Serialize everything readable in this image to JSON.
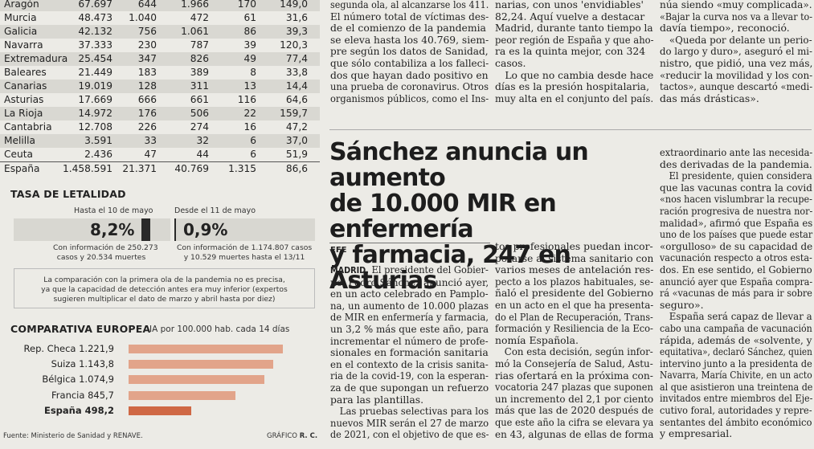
{
  "table": {
    "rows": [
      [
        "Aragón",
        "67.697",
        "644",
        "1.966",
        "170",
        "149,0"
      ],
      [
        "Murcia",
        "48.473",
        "1.040",
        "472",
        "61",
        "31,6"
      ],
      [
        "Galicia",
        "42.132",
        "756",
        "1.061",
        "86",
        "39,3"
      ],
      [
        "Navarra",
        "37.333",
        "230",
        "787",
        "39",
        "120,3"
      ],
      [
        "Extremadura",
        "25.454",
        "347",
        "826",
        "49",
        "77,4"
      ],
      [
        "Baleares",
        "21.449",
        "183",
        "389",
        "8",
        "33,8"
      ],
      [
        "Canarias",
        "19.019",
        "128",
        "311",
        "13",
        "14,4"
      ],
      [
        "Asturias",
        "17.669",
        "666",
        "661",
        "116",
        "64,6"
      ],
      [
        "La Rioja",
        "14.972",
        "176",
        "506",
        "22",
        "159,7"
      ],
      [
        "Cantabria",
        "12.708",
        "226",
        "274",
        "16",
        "47,2"
      ],
      [
        "Melilla",
        "3.591",
        "33",
        "32",
        "6",
        "37,0"
      ],
      [
        "Ceuta",
        "2.436",
        "47",
        "44",
        "6",
        "51,9"
      ]
    ],
    "total": [
      "España",
      "1.458.591",
      "21.371",
      "40.769",
      "1.315",
      "86,6"
    ]
  },
  "lethality": {
    "title": "TASA DE LETALIDAD",
    "left_label": "Hasta el 10 de mayo",
    "right_label": "Desde el 11 de mayo",
    "left_value": "8,2%",
    "right_value": "0,9%",
    "left_level": 8.2,
    "right_level": 0.9,
    "left_note_1": "Con información de 250.273",
    "left_note_2": "casos y 20.534 muertes",
    "right_note_1": "Con información de 1.174.807 casos",
    "right_note_2": "y 10.529 muertes hasta el 13/11",
    "comparison_1": "La comparación con la primera ola de la pandemia no es precisa,",
    "comparison_2": "ya que la capacidad de detección antes era muy inferior (expertos",
    "comparison_3": "sugieren multiplicar el dato de marzo y abril hasta por diez)"
  },
  "european": {
    "title": "COMPARATIVA EUROPEA",
    "subtitle": "IA por 100.000 hab. cada 14 días"
  },
  "chart_data": {
    "type": "bar",
    "title": "COMPARATIVA EUROPEA",
    "subtitle": "IA por 100.000 hab. cada 14 días",
    "categories": [
      "Rep. Checa",
      "Suiza",
      "Bélgica",
      "Francia",
      "España"
    ],
    "values": [
      1221.9,
      1143.8,
      1074.9,
      845.7,
      498.2
    ],
    "value_labels": [
      "1.221,9",
      "1.143,8",
      "1.074,9",
      "845,7",
      "498,2"
    ],
    "highlight": "España",
    "colors": {
      "bar": "#e2a48a",
      "highlight": "#cf6845"
    }
  },
  "footer": {
    "source": "Fuente: Ministerio de Sanidad y RENAVE.",
    "credit_prefix": "GRÁFICO",
    "credit_name": "R. C."
  },
  "top_col1": [
    "segunda ola, al alcanzarse los 411.",
    "El número total de víctimas des-",
    "de el comienzo de la pandemia",
    "se eleva hasta los 40.769, siem-",
    "pre según los datos de Sanidad,",
    "que sólo contabiliza a los falleci-",
    "dos que hayan dado positivo en",
    "una prueba de coronavirus. Otros",
    "organismos públicos, como el Ins-"
  ],
  "top_col2": [
    "narias, con unos 'envidiables'",
    "82,24. Aquí vuelve a destacar",
    "Madrid, durante tanto tiempo la",
    "peor región de España y que aho-",
    "ra es la quinta mejor, con 324",
    "casos.",
    "   Lo que no cambia desde hace",
    "días es la presión hospitalaria,",
    "muy alta en el conjunto del país."
  ],
  "top_col3": [
    "núa siendo «muy complicada».",
    "«Bajar la curva nos va a llevar to-",
    "davía tiempo», reconoció.",
    "   «Queda por delante un perio-",
    "do largo y duro», aseguró el mi-",
    "nistro, que pidió, una vez más,",
    "«reducir la movilidad y los con-",
    "tactos», aunque descartó «medi-",
    "das más drásticas»."
  ],
  "article": {
    "headline_1": "Sánchez anuncia un aumento",
    "headline_2": "de 10.000 MIR en enfermería",
    "headline_3": "y farmacia, 247 en Asturias",
    "agency": "EFE",
    "col1": [
      "MADRID. El presidente del Gobier-",
      "no, Pedro Sánchez anunció ayer,",
      "en un acto celebrado en Pamplo-",
      "na, un aumento de 10.000 plazas",
      "de MIR en enfermería y farmacia,",
      "un 3,2 % más que este año, para",
      "incrementar el número de profe-",
      "sionales en formación sanitaria",
      "en el contexto de la crisis sanita-",
      "ria de la covid-19, con la esperan-",
      "za de que supongan un refuerzo",
      "para las plantillas.",
      "   Las pruebas selectivas para los",
      "nuevos MIR serán el 27 de marzo",
      "de 2021, con el objetivo de que es-"
    ],
    "col2": [
      "tos profesionales puedan incor-",
      "porarse al sistema sanitario con",
      "varios meses de antelación res-",
      "pecto a los plazos habituales, se-",
      "ñaló el presidente del Gobierno",
      "en un acto en el que ha presenta-",
      "do el Plan de Recuperación, Trans-",
      "formación y Resiliencia de la Eco-",
      "nomía Española.",
      "   Con esta decisión, según infor-",
      "mó la Consejería de Salud, Astu-",
      "rias ofertará en la próxima con-",
      "vocatoria 247 plazas que suponen",
      "un incremento del 2,1 por ciento",
      "más que las de 2020 después de",
      "que este año la cifra se elevara ya",
      "en 43, algunas de ellas de forma"
    ],
    "col3": [
      "extraordinario ante las necesida-",
      "des derivadas de la pandemia.",
      "   El presidente, quien considera",
      "que las vacunas contra la covid",
      "«nos hacen vislumbrar la recupe-",
      "ración progresiva de nuestra nor-",
      "malidad», afirmó que España es",
      "uno de los países que puede estar",
      "«orgulloso» de su capacidad de",
      "vacunación respecto a otros esta-",
      "dos. En ese sentido, el Gobierno",
      "anunció ayer que España compra-",
      "rá «vacunas de más para ir sobre",
      "seguro».",
      "   España será capaz de llevar a",
      "cabo una campaña de vacunación",
      "rápida, además de «solvente, y",
      "equitativa», declaró Sánchez, quien",
      "intervino junto a la presidenta de",
      "Navarra, María Chivite, en un acto",
      "al que asistieron una treintena de",
      "invitados entre miembros del Eje-",
      "cutivo foral, autoridades y repre-",
      "sentantes del ámbito económico",
      "y empresarial."
    ]
  }
}
